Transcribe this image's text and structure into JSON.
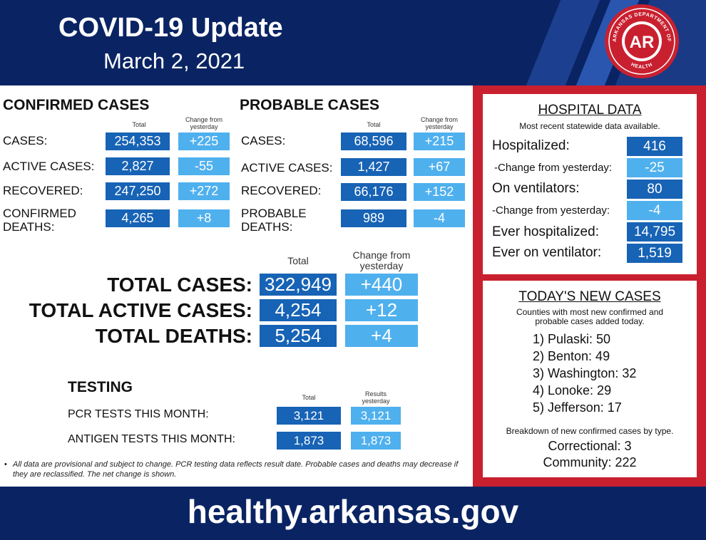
{
  "header": {
    "title": "COVID-19 Update",
    "date": "March 2, 2021",
    "seal_text_top": "ARKANSAS DEPARTMENT OF",
    "seal_text_bottom": "HEALTH",
    "seal_letters": "AR",
    "colors": {
      "navy": "#0a2463",
      "red": "#c9202f",
      "dark_blue": "#1763b5",
      "light_blue": "#4fb0ee"
    }
  },
  "confirmed": {
    "heading": "CONFIRMED CASES",
    "col_total": "Total",
    "col_change": "Change from yesterday",
    "rows": [
      {
        "label": "CASES:",
        "total": "254,353",
        "change": "+225"
      },
      {
        "label": "ACTIVE CASES:",
        "total": "2,827",
        "change": "-55"
      },
      {
        "label": "RECOVERED:",
        "total": "247,250",
        "change": "+272"
      },
      {
        "label": "CONFIRMED DEATHS:",
        "total": "4,265",
        "change": "+8"
      }
    ]
  },
  "probable": {
    "heading": "PROBABLE CASES",
    "col_total": "Total",
    "col_change": "Change from yesterday",
    "rows": [
      {
        "label": "CASES:",
        "total": "68,596",
        "change": "+215"
      },
      {
        "label": "ACTIVE CASES:",
        "total": "1,427",
        "change": "+67"
      },
      {
        "label": "RECOVERED:",
        "total": "66,176",
        "change": "+152"
      },
      {
        "label": "PROBABLE DEATHS:",
        "total": "989",
        "change": "-4"
      }
    ]
  },
  "totals": {
    "col_total": "Total",
    "col_change": "Change from yesterday",
    "rows": [
      {
        "label": "TOTAL CASES:",
        "total": "322,949",
        "change": "+440"
      },
      {
        "label": "TOTAL ACTIVE CASES:",
        "total": "4,254",
        "change": "+12"
      },
      {
        "label": "TOTAL DEATHS:",
        "total": "5,254",
        "change": "+4"
      }
    ]
  },
  "testing": {
    "heading": "TESTING",
    "col_total": "Total",
    "col_results": "Results yesterday",
    "rows": [
      {
        "label": "PCR TESTS THIS MONTH:",
        "total": "3,121",
        "yesterday": "3,121"
      },
      {
        "label": "ANTIGEN TESTS THIS MONTH:",
        "total": "1,873",
        "yesterday": "1,873"
      }
    ]
  },
  "footnote": "All data are provisional and subject to change. PCR testing data reflects result date. Probable cases and deaths may decrease if they are reclassified. The net change is shown.",
  "hospital": {
    "title": "HOSPITAL DATA",
    "subtitle": "Most recent statewide data available.",
    "rows": [
      {
        "label": "Hospitalized:",
        "value": "416",
        "kind": "main"
      },
      {
        "label": "-Change from yesterday:",
        "value": "-25",
        "kind": "sub"
      },
      {
        "label": "On ventilators:",
        "value": "80",
        "kind": "main"
      },
      {
        "label": "-Change from yesterday:",
        "value": "-4",
        "kind": "sub"
      },
      {
        "label": "Ever hospitalized:",
        "value": "14,795",
        "kind": "main"
      },
      {
        "label": "Ever on ventilator:",
        "value": "1,519",
        "kind": "main"
      }
    ]
  },
  "new_cases": {
    "title": "TODAY'S NEW CASES",
    "subtitle": "Counties with most new confirmed and probable cases added today.",
    "counties": [
      "1) Pulaski: 50",
      "2) Benton: 49",
      "3) Washington: 32",
      "4) Lonoke: 29",
      "5) Jefferson: 17"
    ],
    "breakdown_title": "Breakdown of new confirmed cases by type.",
    "breakdown": [
      "Correctional: 3",
      "Community: 222"
    ]
  },
  "footer": {
    "url": "healthy.arkansas.gov"
  }
}
